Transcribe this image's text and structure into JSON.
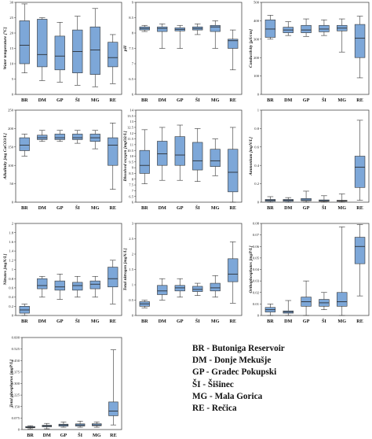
{
  "categories": [
    "BR",
    "DM",
    "GP",
    "ŠI",
    "MG",
    "RE"
  ],
  "box_color": "#7da7d8",
  "legend": [
    "BR - Butoniga Reservoir",
    "DM - Donje Mekušje",
    "GP - Gradec Pokupski",
    "ŠI - Šišinec",
    "MG - Mala Gorica",
    "RE - Rečica"
  ],
  "chart_data": [
    {
      "type": "box",
      "ylabel": "Water temperature [°C]",
      "ylim": [
        0,
        30
      ],
      "yticks": [
        0,
        5,
        10,
        15,
        20,
        25,
        30
      ],
      "categories": [
        "BR",
        "DM",
        "GP",
        "ŠI",
        "MG",
        "RE"
      ],
      "boxes": [
        {
          "min": 7,
          "q1": 10,
          "median": 16,
          "q3": 24,
          "max": 29.5
        },
        {
          "min": 4.5,
          "q1": 9,
          "median": 13,
          "q3": 24.5,
          "max": 25
        },
        {
          "min": 4,
          "q1": 8,
          "median": 12.5,
          "q3": 19,
          "max": 23.5
        },
        {
          "min": 3,
          "q1": 7,
          "median": 14,
          "q3": 21,
          "max": 25.5
        },
        {
          "min": 2.5,
          "q1": 6.5,
          "median": 14.5,
          "q3": 22,
          "max": 28
        },
        {
          "min": 3.5,
          "q1": 9,
          "median": 12,
          "q3": 17,
          "max": 19.5
        }
      ]
    },
    {
      "type": "box",
      "ylabel": "pH",
      "ylim": [
        6.0,
        9.0
      ],
      "yticks": [
        6.0,
        6.5,
        7.0,
        7.5,
        8.0,
        8.5,
        9.0
      ],
      "categories": [
        "BR",
        "DM",
        "GP",
        "ŠI",
        "MG",
        "RE"
      ],
      "boxes": [
        {
          "min": 8.05,
          "q1": 8.1,
          "median": 8.15,
          "q3": 8.2,
          "max": 8.25
        },
        {
          "min": 7.5,
          "q1": 8.05,
          "median": 8.15,
          "q3": 8.2,
          "max": 8.3
        },
        {
          "min": 7.5,
          "q1": 8.07,
          "median": 8.12,
          "q3": 8.17,
          "max": 8.25
        },
        {
          "min": 7.95,
          "q1": 8.1,
          "median": 8.15,
          "q3": 8.2,
          "max": 8.3
        },
        {
          "min": 7.5,
          "q1": 8.05,
          "median": 8.2,
          "q3": 8.25,
          "max": 8.4
        },
        {
          "min": 6.8,
          "q1": 7.5,
          "median": 7.75,
          "q3": 7.8,
          "max": 8.1
        }
      ]
    },
    {
      "type": "box",
      "ylabel": "Conductivity [μS/cm]",
      "ylim": [
        0,
        500
      ],
      "yticks": [
        0,
        100,
        200,
        300,
        400,
        500
      ],
      "categories": [
        "BR",
        "DM",
        "GP",
        "ŠI",
        "MG",
        "RE"
      ],
      "boxes": [
        {
          "min": 300,
          "q1": 310,
          "median": 355,
          "q3": 405,
          "max": 430
        },
        {
          "min": 320,
          "q1": 335,
          "median": 350,
          "q3": 365,
          "max": 395
        },
        {
          "min": 315,
          "q1": 335,
          "median": 350,
          "q3": 375,
          "max": 410
        },
        {
          "min": 320,
          "q1": 340,
          "median": 355,
          "q3": 375,
          "max": 405
        },
        {
          "min": 230,
          "q1": 345,
          "median": 360,
          "q3": 375,
          "max": 410
        },
        {
          "min": 90,
          "q1": 200,
          "median": 305,
          "q3": 380,
          "max": 425
        }
      ]
    },
    {
      "type": "box",
      "ylabel": "Alkalinity [mg CaCO3/L]",
      "ylim": [
        0,
        250
      ],
      "yticks": [
        0,
        50,
        100,
        150,
        200,
        250
      ],
      "categories": [
        "BR",
        "DM",
        "GP",
        "ŠI",
        "MG",
        "RE"
      ],
      "boxes": [
        {
          "min": 125,
          "q1": 140,
          "median": 155,
          "q3": 175,
          "max": 185
        },
        {
          "min": 165,
          "q1": 170,
          "median": 175,
          "q3": 182,
          "max": 195
        },
        {
          "min": 165,
          "q1": 170,
          "median": 175,
          "q3": 185,
          "max": 195
        },
        {
          "min": 160,
          "q1": 170,
          "median": 175,
          "q3": 185,
          "max": 195
        },
        {
          "min": 145,
          "q1": 165,
          "median": 175,
          "q3": 185,
          "max": 195
        },
        {
          "min": 35,
          "q1": 100,
          "median": 155,
          "q3": 175,
          "max": 215
        }
      ]
    },
    {
      "type": "box",
      "ylabel": "Dissolved oxygen [mgO2/L]",
      "ylim": [
        6.0,
        14.0
      ],
      "yticks": [
        6.0,
        6.5,
        7.0,
        7.5,
        8.0,
        8.5,
        9.0,
        9.5,
        10.0,
        10.5,
        11.0,
        11.5,
        12.0,
        12.5,
        13.0,
        13.5,
        14.0
      ],
      "categories": [
        "BR",
        "DM",
        "GP",
        "ŠI",
        "MG",
        "RE"
      ],
      "boxes": [
        {
          "min": 7.6,
          "q1": 8.5,
          "median": 9.2,
          "q3": 10.5,
          "max": 12.3
        },
        {
          "min": 7.9,
          "q1": 9.2,
          "median": 10.2,
          "q3": 11.3,
          "max": 12.5
        },
        {
          "min": 7.9,
          "q1": 9.2,
          "median": 10.1,
          "q3": 11.7,
          "max": 12.7
        },
        {
          "min": 7.8,
          "q1": 8.8,
          "median": 9.6,
          "q3": 11.2,
          "max": 12.4
        },
        {
          "min": 8.3,
          "q1": 9.1,
          "median": 9.6,
          "q3": 10.6,
          "max": 11.5
        },
        {
          "min": 6.0,
          "q1": 6.9,
          "median": 8.6,
          "q3": 10.6,
          "max": 12.5
        }
      ]
    },
    {
      "type": "box",
      "ylabel": "Ammonium [mgN/L]",
      "ylim": [
        0,
        1.0
      ],
      "yticks": [
        0,
        0.2,
        0.4,
        0.6,
        0.8,
        1.0
      ],
      "categories": [
        "BR",
        "DM",
        "GP",
        "ŠI",
        "MG",
        "RE"
      ],
      "boxes": [
        {
          "min": 0.0,
          "q1": 0.01,
          "median": 0.02,
          "q3": 0.03,
          "max": 0.06
        },
        {
          "min": 0.0,
          "q1": 0.01,
          "median": 0.02,
          "q3": 0.03,
          "max": 0.05
        },
        {
          "min": 0.0,
          "q1": 0.015,
          "median": 0.025,
          "q3": 0.04,
          "max": 0.12
        },
        {
          "min": 0.0,
          "q1": 0.01,
          "median": 0.015,
          "q3": 0.025,
          "max": 0.07
        },
        {
          "min": 0.0,
          "q1": 0.01,
          "median": 0.015,
          "q3": 0.02,
          "max": 0.09
        },
        {
          "min": 0.02,
          "q1": 0.16,
          "median": 0.38,
          "q3": 0.5,
          "max": 0.89
        }
      ]
    },
    {
      "type": "box",
      "ylabel": "Nitrates [mgN/L]",
      "ylim": [
        0,
        2.0
      ],
      "yticks": [
        0,
        0.2,
        0.4,
        0.6,
        0.8,
        1.0,
        1.2,
        1.4,
        1.6,
        1.8,
        2.0
      ],
      "categories": [
        "BR",
        "DM",
        "GP",
        "ŠI",
        "MG",
        "RE"
      ],
      "boxes": [
        {
          "min": 0.0,
          "q1": 0.05,
          "median": 0.12,
          "q3": 0.2,
          "max": 0.25
        },
        {
          "min": 0.4,
          "q1": 0.58,
          "median": 0.65,
          "q3": 0.8,
          "max": 0.85
        },
        {
          "min": 0.35,
          "q1": 0.55,
          "median": 0.62,
          "q3": 0.75,
          "max": 0.9
        },
        {
          "min": 0.4,
          "q1": 0.55,
          "median": 0.65,
          "q3": 0.72,
          "max": 0.85
        },
        {
          "min": 0.4,
          "q1": 0.58,
          "median": 0.68,
          "q3": 0.75,
          "max": 0.85
        },
        {
          "min": 0.25,
          "q1": 0.62,
          "median": 0.8,
          "q3": 1.05,
          "max": 1.2
        }
      ]
    },
    {
      "type": "box",
      "ylabel": "Total nitrogen [mgN/L]",
      "ylim": [
        0,
        3.0
      ],
      "yticks": [
        0,
        0.5,
        1.0,
        1.5,
        2.0,
        2.5,
        3.0
      ],
      "categories": [
        "BR",
        "DM",
        "GP",
        "ŠI",
        "MG",
        "RE"
      ],
      "boxes": [
        {
          "min": 0.25,
          "q1": 0.3,
          "median": 0.38,
          "q3": 0.45,
          "max": 0.5
        },
        {
          "min": 0.5,
          "q1": 0.68,
          "median": 0.8,
          "q3": 0.98,
          "max": 1.2
        },
        {
          "min": 0.6,
          "q1": 0.8,
          "median": 0.9,
          "q3": 0.98,
          "max": 1.2
        },
        {
          "min": 0.65,
          "q1": 0.78,
          "median": 0.85,
          "q3": 0.95,
          "max": 1.05
        },
        {
          "min": 0.6,
          "q1": 0.8,
          "median": 0.9,
          "q3": 1.05,
          "max": 1.3
        },
        {
          "min": 0.4,
          "q1": 1.1,
          "median": 1.35,
          "q3": 1.85,
          "max": 2.4
        }
      ]
    },
    {
      "type": "box",
      "ylabel": "Orthophosphates [mgP/L]",
      "ylim": [
        0,
        0.08
      ],
      "yticks": [
        0,
        0.01,
        0.02,
        0.03,
        0.04,
        0.05,
        0.06,
        0.07,
        0.08
      ],
      "categories": [
        "BR",
        "DM",
        "GP",
        "ŠI",
        "MG",
        "RE"
      ],
      "boxes": [
        {
          "min": 0.0,
          "q1": 0.003,
          "median": 0.005,
          "q3": 0.007,
          "max": 0.01
        },
        {
          "min": 0.0,
          "q1": 0.002,
          "median": 0.003,
          "q3": 0.004,
          "max": 0.013
        },
        {
          "min": 0.0,
          "q1": 0.008,
          "median": 0.012,
          "q3": 0.016,
          "max": 0.03
        },
        {
          "min": 0.005,
          "q1": 0.008,
          "median": 0.011,
          "q3": 0.014,
          "max": 0.02
        },
        {
          "min": 0.0,
          "q1": 0.008,
          "median": 0.012,
          "q3": 0.02,
          "max": 0.077
        },
        {
          "min": 0.017,
          "q1": 0.045,
          "median": 0.06,
          "q3": 0.068,
          "max": 0.079
        }
      ]
    },
    {
      "type": "box",
      "ylabel": "Total phosphorus [mgP/L]",
      "ylim": [
        0,
        0.6
      ],
      "yticks": [
        0,
        0.075,
        0.15,
        0.225,
        0.3,
        0.375,
        0.45,
        0.525,
        0.6
      ],
      "yticklabels": [
        "0",
        "0.075",
        "0.150",
        "0.225",
        "0.300",
        "0.375",
        "0.450",
        "0.525",
        "0.600"
      ],
      "categories": [
        "BR",
        "DM",
        "GP",
        "ŠI",
        "MG",
        "RE"
      ],
      "boxes": [
        {
          "min": 0.005,
          "q1": 0.012,
          "median": 0.015,
          "q3": 0.02,
          "max": 0.025
        },
        {
          "min": 0.005,
          "q1": 0.018,
          "median": 0.023,
          "q3": 0.028,
          "max": 0.04
        },
        {
          "min": 0.015,
          "q1": 0.022,
          "median": 0.03,
          "q3": 0.035,
          "max": 0.05
        },
        {
          "min": 0.015,
          "q1": 0.023,
          "median": 0.03,
          "q3": 0.037,
          "max": 0.055
        },
        {
          "min": 0.015,
          "q1": 0.025,
          "median": 0.03,
          "q3": 0.038,
          "max": 0.05
        },
        {
          "min": 0.03,
          "q1": 0.09,
          "median": 0.12,
          "q3": 0.18,
          "max": 0.52
        }
      ]
    }
  ]
}
